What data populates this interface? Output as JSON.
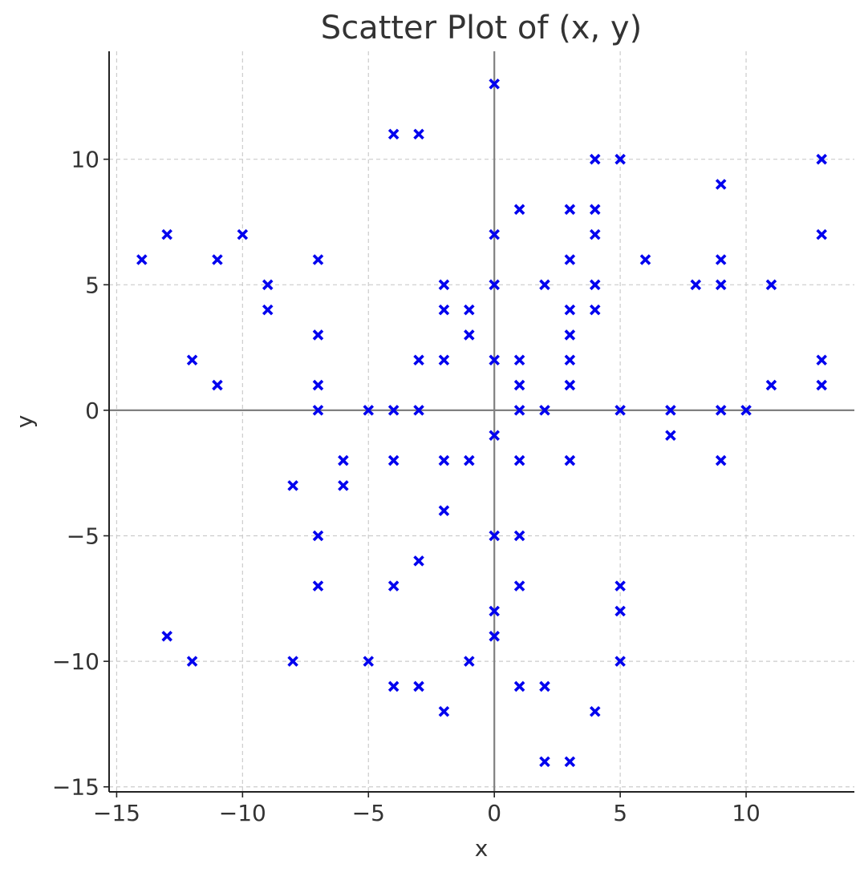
{
  "chart_data": {
    "type": "scatter",
    "title": "Scatter Plot of (x, y)",
    "xlabel": "x",
    "ylabel": "y",
    "xlim": [
      -15.3,
      14.3
    ],
    "ylim": [
      -15.2,
      14.3
    ],
    "xticks": [
      -15,
      -10,
      -5,
      0,
      5,
      10
    ],
    "yticks": [
      -15,
      -10,
      -5,
      0,
      5,
      10
    ],
    "xtick_labels": [
      "−15",
      "−10",
      "−5",
      "0",
      "5",
      "10"
    ],
    "ytick_labels": [
      "−15",
      "−10",
      "−5",
      "0",
      "5",
      "10"
    ],
    "grid": true,
    "zero_lines": true,
    "marker": "x",
    "marker_color": "#0000ee",
    "points": [
      [
        -14,
        6
      ],
      [
        -13,
        7
      ],
      [
        -13,
        -9
      ],
      [
        -12,
        2
      ],
      [
        -12,
        -10
      ],
      [
        -11,
        6
      ],
      [
        -11,
        1
      ],
      [
        -10,
        7
      ],
      [
        -9,
        5
      ],
      [
        -9,
        4
      ],
      [
        -8,
        -3
      ],
      [
        -8,
        -10
      ],
      [
        -7,
        6
      ],
      [
        -7,
        3
      ],
      [
        -7,
        1
      ],
      [
        -7,
        0
      ],
      [
        -7,
        -5
      ],
      [
        -7,
        -7
      ],
      [
        -6,
        -2
      ],
      [
        -6,
        -3
      ],
      [
        -5,
        0
      ],
      [
        -5,
        -10
      ],
      [
        -4,
        11
      ],
      [
        -4,
        0
      ],
      [
        -4,
        -2
      ],
      [
        -4,
        -7
      ],
      [
        -4,
        -11
      ],
      [
        -3,
        11
      ],
      [
        -3,
        2
      ],
      [
        -3,
        0
      ],
      [
        -3,
        -6
      ],
      [
        -3,
        -11
      ],
      [
        -2,
        5
      ],
      [
        -2,
        4
      ],
      [
        -2,
        2
      ],
      [
        -2,
        -2
      ],
      [
        -2,
        -4
      ],
      [
        -2,
        -12
      ],
      [
        -1,
        4
      ],
      [
        -1,
        3
      ],
      [
        -1,
        -2
      ],
      [
        -1,
        -10
      ],
      [
        0,
        13
      ],
      [
        0,
        7
      ],
      [
        0,
        5
      ],
      [
        0,
        2
      ],
      [
        0,
        -1
      ],
      [
        0,
        -5
      ],
      [
        0,
        -8
      ],
      [
        0,
        -9
      ],
      [
        1,
        8
      ],
      [
        1,
        2
      ],
      [
        1,
        1
      ],
      [
        1,
        0
      ],
      [
        1,
        -2
      ],
      [
        1,
        -5
      ],
      [
        1,
        -7
      ],
      [
        1,
        -11
      ],
      [
        2,
        5
      ],
      [
        2,
        0
      ],
      [
        2,
        -11
      ],
      [
        2,
        -14
      ],
      [
        3,
        8
      ],
      [
        3,
        6
      ],
      [
        3,
        4
      ],
      [
        3,
        3
      ],
      [
        3,
        2
      ],
      [
        3,
        1
      ],
      [
        3,
        -2
      ],
      [
        3,
        -14
      ],
      [
        4,
        10
      ],
      [
        4,
        8
      ],
      [
        4,
        7
      ],
      [
        4,
        5
      ],
      [
        4,
        4
      ],
      [
        4,
        -12
      ],
      [
        5,
        10
      ],
      [
        5,
        0
      ],
      [
        5,
        -7
      ],
      [
        5,
        -8
      ],
      [
        5,
        -10
      ],
      [
        6,
        6
      ],
      [
        7,
        0
      ],
      [
        7,
        -1
      ],
      [
        8,
        5
      ],
      [
        9,
        9
      ],
      [
        9,
        6
      ],
      [
        9,
        5
      ],
      [
        9,
        0
      ],
      [
        9,
        -2
      ],
      [
        10,
        0
      ],
      [
        11,
        5
      ],
      [
        11,
        1
      ],
      [
        13,
        10
      ],
      [
        13,
        7
      ],
      [
        13,
        2
      ],
      [
        13,
        1
      ]
    ]
  }
}
